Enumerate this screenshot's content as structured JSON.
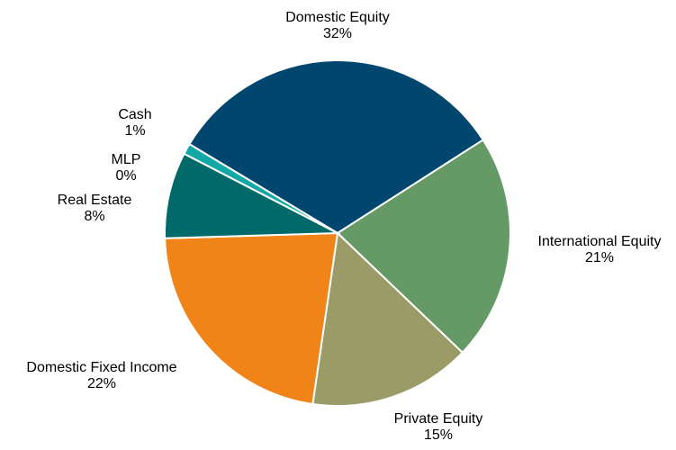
{
  "chart_data": {
    "type": "pie",
    "categories": [
      "Domestic Equity",
      "International Equity",
      "Private Equity",
      "Domestic Fixed Income",
      "Real Estate",
      "MLP",
      "Cash"
    ],
    "values": [
      32,
      21,
      15,
      22,
      8,
      0,
      1
    ],
    "value_labels": [
      "32%",
      "21%",
      "15%",
      "22%",
      "8%",
      "0%",
      "1%"
    ],
    "colors": [
      "#00466e",
      "#659a67",
      "#9b9b67",
      "#f08419",
      "#006a6a",
      "#5fb14c",
      "#13a7a7"
    ]
  }
}
